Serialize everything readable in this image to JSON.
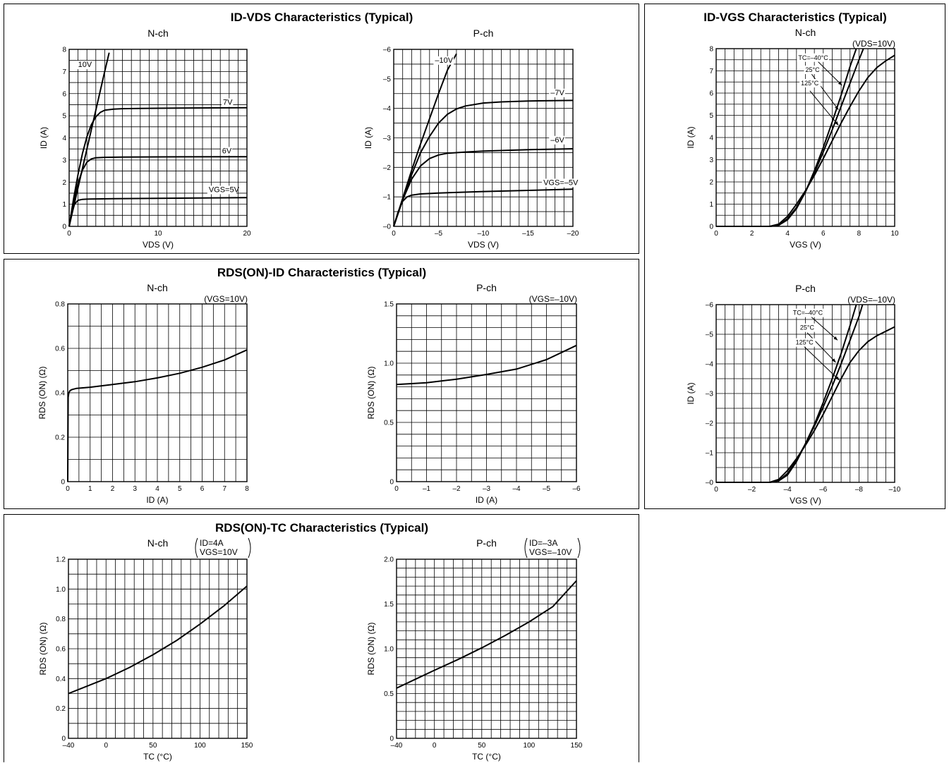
{
  "chart_data": [
    {
      "id": "idvds-n",
      "type": "line",
      "panel_title": "ID-VDS Characteristics (Typical)",
      "subtitle": "N-ch",
      "condition": [],
      "xlabel": "VDS  (V)",
      "ylabel": "ID  (A)",
      "xlim": [
        0,
        20
      ],
      "ylim": [
        0,
        8
      ],
      "xgrid": 1,
      "ygrid": 0.5,
      "grid": true,
      "xticks": [
        0,
        10,
        20
      ],
      "yticks": [
        0,
        1,
        2,
        3,
        4,
        5,
        6,
        7,
        8
      ],
      "xticklabels": [
        "0",
        "10",
        "20"
      ],
      "yticklabels": [
        "0",
        "1",
        "2",
        "3",
        "4",
        "5",
        "6",
        "7",
        "8"
      ],
      "series": [
        {
          "name": "10V",
          "x": [
            0,
            1,
            2,
            3,
            4,
            4.5
          ],
          "y": [
            0,
            1.75,
            3.5,
            5.25,
            7.0,
            7.85
          ]
        },
        {
          "name": "7V",
          "x": [
            0,
            0.5,
            1,
            1.5,
            2,
            2.5,
            3,
            3.5,
            4,
            5,
            6,
            8,
            10,
            14,
            20
          ],
          "y": [
            0,
            1.25,
            2.35,
            3.3,
            4.05,
            4.6,
            4.95,
            5.15,
            5.25,
            5.3,
            5.32,
            5.33,
            5.34,
            5.35,
            5.36
          ]
        },
        {
          "name": "6V",
          "x": [
            0,
            0.5,
            1,
            1.5,
            2,
            2.5,
            3,
            4,
            6,
            10,
            20
          ],
          "y": [
            0,
            1.1,
            1.95,
            2.55,
            2.9,
            3.05,
            3.1,
            3.12,
            3.13,
            3.14,
            3.15
          ]
        },
        {
          "name": "VGS=5V",
          "x": [
            0,
            0.3,
            0.6,
            1,
            1.5,
            2,
            3,
            5,
            10,
            20
          ],
          "y": [
            0,
            0.6,
            1.0,
            1.18,
            1.22,
            1.23,
            1.24,
            1.25,
            1.27,
            1.3
          ]
        }
      ],
      "annotations": [
        {
          "text": "10V",
          "x": 1.0,
          "y": 7.2
        },
        {
          "text": "7V",
          "x": 17.3,
          "y": 5.5
        },
        {
          "text": "6V",
          "x": 17.2,
          "y": 3.3
        },
        {
          "text": "VGS=5V",
          "x": 15.7,
          "y": 1.55
        }
      ]
    },
    {
      "id": "idvds-p",
      "type": "line",
      "subtitle": "P-ch",
      "condition": [],
      "xlabel": "VDS  (V)",
      "ylabel": "ID  (A)",
      "xlim": [
        0,
        -20
      ],
      "ylim": [
        0,
        -6
      ],
      "xgrid": -1,
      "ygrid": -0.5,
      "grid": true,
      "xticks": [
        0,
        -5,
        -10,
        -15,
        -20
      ],
      "yticks": [
        0,
        -1,
        -2,
        -3,
        -4,
        -5,
        -6
      ],
      "xticklabels": [
        "0",
        "–5",
        "–10",
        "–15",
        "–20"
      ],
      "yticklabels": [
        "–0",
        "–1",
        "–2",
        "–3",
        "–4",
        "–5",
        "–6"
      ],
      "series": [
        {
          "name": "–10V",
          "x": [
            0,
            -1,
            -2,
            -3,
            -4,
            -5,
            -6,
            -7
          ],
          "y": [
            0,
            -0.95,
            -1.9,
            -2.8,
            -3.65,
            -4.5,
            -5.3,
            -5.85
          ]
        },
        {
          "name": "–7V",
          "x": [
            0,
            -1,
            -2,
            -3,
            -4,
            -5,
            -6,
            -7,
            -8,
            -10,
            -12,
            -15,
            -20
          ],
          "y": [
            0,
            -0.9,
            -1.75,
            -2.5,
            -3.05,
            -3.5,
            -3.8,
            -3.98,
            -4.08,
            -4.18,
            -4.22,
            -4.25,
            -4.27
          ]
        },
        {
          "name": "–6V",
          "x": [
            0,
            -1,
            -2,
            -3,
            -4,
            -5,
            -6,
            -8,
            -10,
            -15,
            -20
          ],
          "y": [
            0,
            -0.9,
            -1.6,
            -2.05,
            -2.3,
            -2.42,
            -2.48,
            -2.52,
            -2.55,
            -2.6,
            -2.63
          ]
        },
        {
          "name": "VGS=–5V",
          "x": [
            0,
            -0.5,
            -1,
            -1.5,
            -2,
            -3,
            -5,
            -10,
            -15,
            -20
          ],
          "y": [
            0,
            -0.5,
            -0.85,
            -1.0,
            -1.06,
            -1.1,
            -1.13,
            -1.18,
            -1.22,
            -1.26
          ]
        }
      ],
      "annotations": [
        {
          "text": "–10V",
          "x": -4.6,
          "y": -5.55
        },
        {
          "text": "–7V",
          "x": -17.5,
          "y": -4.45
        },
        {
          "text": "–6V",
          "x": -17.5,
          "y": -2.85
        },
        {
          "text": "VGS=–5V",
          "x": -16.7,
          "y": -1.4
        }
      ]
    },
    {
      "id": "idvgs-n",
      "type": "line",
      "panel_title": "ID-VGS Characteristics (Typical)",
      "subtitle": "N-ch",
      "condition": [
        "(VDS=10V)"
      ],
      "xlabel": "VGS  (V)",
      "ylabel": "ID  (A)",
      "xlim": [
        0,
        10
      ],
      "ylim": [
        0,
        8
      ],
      "xgrid": 0.5,
      "ygrid": 0.5,
      "grid": true,
      "xticks": [
        0,
        2,
        4,
        6,
        8,
        10
      ],
      "yticks": [
        0,
        1,
        2,
        3,
        4,
        5,
        6,
        7,
        8
      ],
      "xticklabels": [
        "0",
        "2",
        "4",
        "6",
        "8",
        "10"
      ],
      "yticklabels": [
        "0",
        "1",
        "2",
        "3",
        "4",
        "5",
        "6",
        "7",
        "8"
      ],
      "series": [
        {
          "name": "TC=–40°C",
          "x": [
            0,
            3.0,
            3.5,
            4.0,
            4.5,
            5.0,
            5.5,
            6.0,
            6.5,
            7.0,
            7.5,
            7.85
          ],
          "y": [
            0,
            0,
            0.05,
            0.3,
            0.8,
            1.55,
            2.5,
            3.55,
            4.7,
            5.9,
            7.2,
            8.0
          ]
        },
        {
          "name": "25°C",
          "x": [
            0,
            3.0,
            3.5,
            4.0,
            4.5,
            5.0,
            5.5,
            6.0,
            6.5,
            7.0,
            7.5,
            8.0,
            8.25
          ],
          "y": [
            0,
            0,
            0.05,
            0.35,
            0.85,
            1.55,
            2.4,
            3.35,
            4.35,
            5.4,
            6.45,
            7.5,
            8.0
          ]
        },
        {
          "name": "125°C",
          "x": [
            0,
            3.0,
            3.5,
            4.0,
            4.5,
            5.0,
            5.5,
            6.0,
            6.5,
            7.0,
            7.5,
            8.0,
            8.5,
            9.0,
            9.5,
            10.0
          ],
          "y": [
            0,
            0,
            0.1,
            0.45,
            1.0,
            1.6,
            2.3,
            3.05,
            3.85,
            4.65,
            5.4,
            6.1,
            6.7,
            7.15,
            7.45,
            7.7
          ]
        }
      ],
      "annotations": [
        {
          "text": "TC=–40°C",
          "x": 4.6,
          "y": 7.5
        },
        {
          "text": "25°C",
          "x": 5.0,
          "y": 6.95
        },
        {
          "text": "125°C",
          "x": 4.75,
          "y": 6.35
        }
      ],
      "arrows": [
        {
          "x1": 5.6,
          "y1": 7.5,
          "x2": 7.05,
          "y2": 6.35
        },
        {
          "x1": 5.35,
          "y1": 6.85,
          "x2": 6.85,
          "y2": 5.25
        },
        {
          "x1": 5.25,
          "y1": 6.1,
          "x2": 6.85,
          "y2": 4.55
        }
      ]
    },
    {
      "id": "idvgs-p",
      "type": "line",
      "subtitle": "P-ch",
      "condition": [
        "(VDS=–10V)"
      ],
      "xlabel": "VGS  (V)",
      "ylabel": "ID  (A)",
      "xlim": [
        0,
        -10
      ],
      "ylim": [
        0,
        -6
      ],
      "xgrid": -0.5,
      "ygrid": -0.5,
      "grid": true,
      "xticks": [
        0,
        -2,
        -4,
        -6,
        -8,
        -10
      ],
      "yticks": [
        0,
        -1,
        -2,
        -3,
        -4,
        -5,
        -6
      ],
      "xticklabels": [
        "0",
        "–2",
        "–4",
        "–6",
        "–8",
        "–10"
      ],
      "yticklabels": [
        "–0",
        "–1",
        "–2",
        "–3",
        "–4",
        "–5",
        "–6"
      ],
      "series": [
        {
          "name": "TC=–40°C",
          "x": [
            0,
            -3.0,
            -3.5,
            -4.0,
            -4.5,
            -5.0,
            -5.5,
            -6.0,
            -6.5,
            -7.0,
            -7.5,
            -7.85
          ],
          "y": [
            0,
            0,
            -0.05,
            -0.25,
            -0.7,
            -1.3,
            -1.95,
            -2.7,
            -3.5,
            -4.35,
            -5.3,
            -6.0
          ]
        },
        {
          "name": "25°C",
          "x": [
            0,
            -3.0,
            -3.5,
            -4.0,
            -4.5,
            -5.0,
            -5.5,
            -6.0,
            -6.5,
            -7.0,
            -7.5,
            -8.0,
            -8.2
          ],
          "y": [
            0,
            0,
            -0.05,
            -0.3,
            -0.75,
            -1.3,
            -1.9,
            -2.55,
            -3.25,
            -4.0,
            -4.8,
            -5.6,
            -6.0
          ]
        },
        {
          "name": "125°C",
          "x": [
            0,
            -3.0,
            -3.5,
            -4.0,
            -4.5,
            -5.0,
            -5.5,
            -6.0,
            -6.5,
            -7.0,
            -7.5,
            -8.0,
            -8.5,
            -9.0,
            -9.5,
            -10.0
          ],
          "y": [
            0,
            0,
            -0.1,
            -0.4,
            -0.8,
            -1.25,
            -1.75,
            -2.3,
            -2.9,
            -3.5,
            -4.05,
            -4.45,
            -4.75,
            -4.95,
            -5.1,
            -5.25
          ]
        }
      ],
      "annotations": [
        {
          "text": "TC=–40°C",
          "x": -4.3,
          "y": -5.65
        },
        {
          "text": "25°C",
          "x": -4.7,
          "y": -5.15
        },
        {
          "text": "125°C",
          "x": -4.45,
          "y": -4.65
        }
      ],
      "arrows": [
        {
          "x1": -5.3,
          "y1": -5.6,
          "x2": -6.8,
          "y2": -4.8
        },
        {
          "x1": -5.1,
          "y1": -5.05,
          "x2": -6.7,
          "y2": -4.05
        },
        {
          "x1": -4.9,
          "y1": -4.6,
          "x2": -6.9,
          "y2": -3.45
        }
      ]
    },
    {
      "id": "rdsid-n",
      "type": "line",
      "panel_title": "RDS(ON)-ID Characteristics (Typical)",
      "subtitle": "N-ch",
      "condition": [
        "(VGS=10V)"
      ],
      "xlabel": "ID  (A)",
      "ylabel": "RDS (ON) (Ω)",
      "xlim": [
        0,
        8
      ],
      "ylim": [
        0,
        0.8
      ],
      "xgrid": 0.5,
      "ygrid": 0.1,
      "grid": true,
      "xticks": [
        0,
        1,
        2,
        3,
        4,
        5,
        6,
        7,
        8
      ],
      "yticks": [
        0,
        0.2,
        0.4,
        0.6,
        0.8
      ],
      "xticklabels": [
        "0",
        "1",
        "2",
        "3",
        "4",
        "5",
        "6",
        "7",
        "8"
      ],
      "yticklabels": [
        "0",
        "0.2",
        "0.4",
        "0.6",
        "0.8"
      ],
      "series": [
        {
          "name": "",
          "x": [
            0,
            0.02,
            0.05,
            0.1,
            0.2,
            0.4,
            1,
            2,
            3,
            4,
            5,
            6,
            7,
            8
          ],
          "y": [
            0,
            0.38,
            0.4,
            0.41,
            0.415,
            0.42,
            0.425,
            0.437,
            0.45,
            0.467,
            0.488,
            0.515,
            0.548,
            0.593
          ]
        }
      ],
      "annotations": []
    },
    {
      "id": "rdsid-p",
      "type": "line",
      "subtitle": "P-ch",
      "condition": [
        "(VGS=–10V)"
      ],
      "xlabel": "ID  (A)",
      "ylabel": "RDS (ON) (Ω)",
      "xlim": [
        0,
        -6
      ],
      "ylim": [
        0,
        1.5
      ],
      "xgrid": -0.5,
      "ygrid": 0.1,
      "grid": true,
      "xticks": [
        0,
        -1,
        -2,
        -3,
        -4,
        -5,
        -6
      ],
      "yticks": [
        0,
        0.5,
        1.0,
        1.5
      ],
      "xticklabels": [
        "0",
        "–1",
        "–2",
        "–3",
        "–4",
        "–5",
        "–6"
      ],
      "yticklabels": [
        "0",
        "0.5",
        "1.0",
        "1.5"
      ],
      "series": [
        {
          "name": "",
          "x": [
            0,
            -1,
            -2,
            -3,
            -4,
            -5,
            -6
          ],
          "y": [
            0.82,
            0.835,
            0.865,
            0.905,
            0.95,
            1.03,
            1.15
          ]
        }
      ],
      "annotations": []
    },
    {
      "id": "rdstc-n",
      "type": "line",
      "panel_title": "RDS(ON)-TC Characteristics (Typical)",
      "subtitle": "N-ch",
      "condition": [
        "ID=4A",
        "VGS=10V"
      ],
      "xlabel": "TC  (°C)",
      "ylabel": "RDS (ON) (Ω)",
      "xlim": [
        -40,
        150
      ],
      "ylim": [
        0,
        1.2
      ],
      "xgrid": 10,
      "ygrid": 0.1,
      "grid": true,
      "xticks": [
        -40,
        0,
        50,
        100,
        150
      ],
      "yticks": [
        0,
        0.2,
        0.4,
        0.6,
        0.8,
        1.0,
        1.2
      ],
      "xticklabels": [
        "–40",
        "0",
        "50",
        "100",
        "150"
      ],
      "yticklabels": [
        "0",
        "0.2",
        "0.4",
        "0.6",
        "0.8",
        "1.0",
        "1.2"
      ],
      "series": [
        {
          "name": "",
          "x": [
            -40,
            -20,
            0,
            25,
            50,
            75,
            100,
            125,
            150
          ],
          "y": [
            0.3,
            0.35,
            0.4,
            0.475,
            0.56,
            0.655,
            0.765,
            0.885,
            1.02
          ]
        }
      ],
      "annotations": []
    },
    {
      "id": "rdstc-p",
      "type": "line",
      "subtitle": "P-ch",
      "condition": [
        "ID=–3A",
        "VGS=–10V"
      ],
      "xlabel": "TC  (°C)",
      "ylabel": "RDS (ON) (Ω)",
      "xlim": [
        -40,
        150
      ],
      "ylim": [
        0,
        2.0
      ],
      "xgrid": 10,
      "ygrid": 0.1,
      "grid": true,
      "xticks": [
        -40,
        0,
        50,
        100,
        150
      ],
      "yticks": [
        0,
        0.5,
        1.0,
        1.5,
        2.0
      ],
      "xticklabels": [
        "–40",
        "0",
        "50",
        "100",
        "150"
      ],
      "yticklabels": [
        "0",
        "0.5",
        "1.0",
        "1.5",
        "2.0"
      ],
      "series": [
        {
          "name": "",
          "x": [
            -40,
            -20,
            0,
            25,
            50,
            75,
            100,
            125,
            150
          ],
          "y": [
            0.56,
            0.66,
            0.76,
            0.88,
            1.01,
            1.15,
            1.3,
            1.47,
            1.76
          ]
        }
      ],
      "annotations": []
    }
  ]
}
